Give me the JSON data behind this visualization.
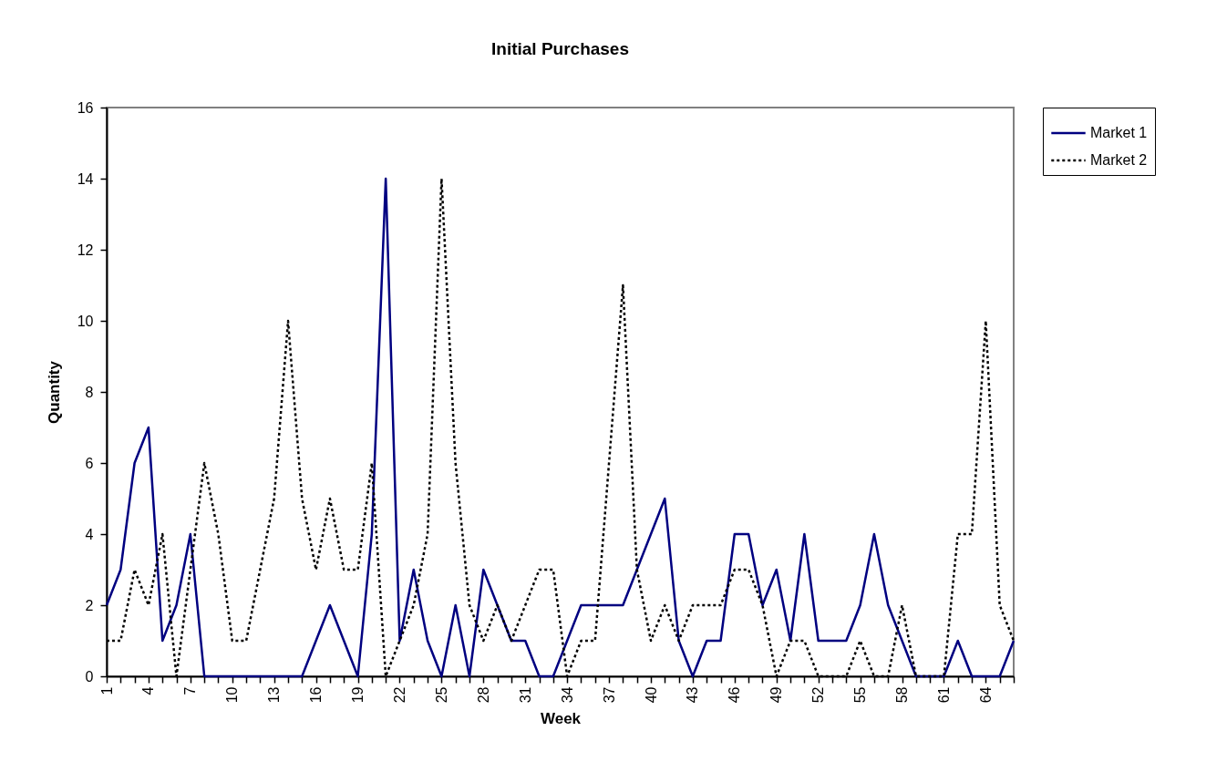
{
  "chart_data": {
    "type": "line",
    "title": "Initial Purchases",
    "xlabel": "Week",
    "ylabel": "Quantity",
    "categories": [
      "1",
      null,
      null,
      "4",
      null,
      null,
      "7",
      null,
      null,
      "10",
      null,
      null,
      "13",
      null,
      null,
      "16",
      null,
      null,
      "19",
      null,
      null,
      "22",
      null,
      null,
      "25",
      null,
      null,
      "28",
      null,
      null,
      "31",
      null,
      null,
      "34",
      null,
      null,
      "37",
      null,
      null,
      "40",
      null,
      null,
      "43",
      null,
      null,
      "46",
      null,
      null,
      "49",
      null,
      null,
      "52",
      null,
      null,
      "55",
      null,
      null,
      "58",
      null,
      null,
      "61",
      null,
      null,
      "64",
      null,
      null
    ],
    "series": [
      {
        "name": "Market 1",
        "color": "#000080",
        "line_style": "solid",
        "values": [
          2,
          3,
          6,
          7,
          1,
          2,
          4,
          0,
          0,
          0,
          0,
          0,
          0,
          0,
          0,
          1,
          2,
          1,
          0,
          4,
          14,
          1,
          3,
          1,
          0,
          2,
          0,
          3,
          2,
          1,
          1,
          0,
          0,
          1,
          2,
          2,
          2,
          2,
          3,
          4,
          5,
          1,
          0,
          1,
          1,
          4,
          4,
          2,
          3,
          1,
          4,
          1,
          1,
          1,
          2,
          4,
          2,
          1,
          0,
          0,
          0,
          1,
          0,
          0,
          0,
          1
        ]
      },
      {
        "name": "Market 2",
        "color": "#000000",
        "line_style": "dotted",
        "values": [
          1,
          1,
          3,
          2,
          4,
          0,
          3,
          6,
          4,
          1,
          1,
          3,
          5,
          10,
          5,
          3,
          5,
          3,
          3,
          6,
          0,
          1,
          2,
          4,
          14,
          6,
          2,
          1,
          2,
          1,
          2,
          3,
          3,
          0,
          1,
          1,
          6,
          11,
          3,
          1,
          2,
          1,
          2,
          2,
          2,
          3,
          3,
          2,
          0,
          1,
          1,
          0,
          0,
          0,
          1,
          0,
          0,
          2,
          0,
          0,
          0,
          4,
          4,
          10,
          2,
          1
        ]
      }
    ],
    "ylim": [
      0,
      16
    ],
    "yticks": [
      0,
      2,
      4,
      6,
      8,
      10,
      12,
      14,
      16
    ],
    "grid": false,
    "legend": "right",
    "marker": "none"
  }
}
